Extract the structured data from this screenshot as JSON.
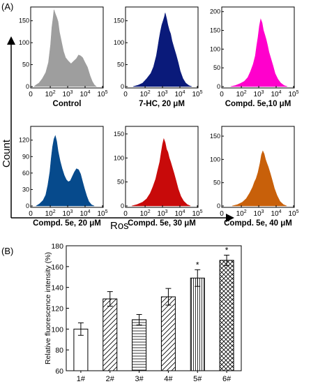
{
  "panel_a": {
    "label": "(A)",
    "y_axis_label": "Count",
    "x_axis_label": "Ros"
  },
  "panel_b": {
    "label": "(B)"
  },
  "chart_data": [
    {
      "type": "area",
      "title": "Control",
      "color": "#9e9e9e",
      "xscale": "log",
      "xlim": [
        0,
        100000
      ],
      "x_ticks": [
        "0",
        "10^2",
        "10^3",
        "10^4",
        "10^5"
      ],
      "y_ticks": [
        0,
        50,
        100,
        150
      ],
      "ylim": [
        0,
        175
      ],
      "profile": [
        [
          0.02,
          0
        ],
        [
          0.05,
          4
        ],
        [
          0.09,
          8
        ],
        [
          0.14,
          18
        ],
        [
          0.19,
          32
        ],
        [
          0.23,
          55
        ],
        [
          0.26,
          95
        ],
        [
          0.28,
          135
        ],
        [
          0.3,
          160
        ],
        [
          0.31,
          175
        ],
        [
          0.33,
          166
        ],
        [
          0.35,
          158
        ],
        [
          0.37,
          148
        ],
        [
          0.39,
          125
        ],
        [
          0.42,
          102
        ],
        [
          0.45,
          80
        ],
        [
          0.48,
          66
        ],
        [
          0.52,
          58
        ],
        [
          0.56,
          52
        ],
        [
          0.6,
          58
        ],
        [
          0.64,
          64
        ],
        [
          0.67,
          72
        ],
        [
          0.7,
          70
        ],
        [
          0.73,
          66
        ],
        [
          0.76,
          56
        ],
        [
          0.8,
          44
        ],
        [
          0.84,
          24
        ],
        [
          0.87,
          12
        ],
        [
          0.9,
          4
        ],
        [
          0.93,
          0
        ]
      ]
    },
    {
      "type": "area",
      "title": "7-HC, 20 μM",
      "color": "#0a1a7a",
      "xscale": "log",
      "xlim": [
        0,
        100000
      ],
      "x_ticks": [
        "0",
        "10^2",
        "10^3",
        "10^4",
        "10^5"
      ],
      "y_ticks": [
        0,
        50,
        100,
        150
      ],
      "ylim": [
        0,
        175
      ],
      "profile": [
        [
          0.08,
          0
        ],
        [
          0.15,
          3
        ],
        [
          0.22,
          8
        ],
        [
          0.28,
          18
        ],
        [
          0.34,
          30
        ],
        [
          0.38,
          45
        ],
        [
          0.42,
          70
        ],
        [
          0.44,
          88
        ],
        [
          0.46,
          108
        ],
        [
          0.48,
          125
        ],
        [
          0.5,
          140
        ],
        [
          0.52,
          150
        ],
        [
          0.54,
          160
        ],
        [
          0.55,
          168
        ],
        [
          0.57,
          155
        ],
        [
          0.59,
          140
        ],
        [
          0.61,
          128
        ],
        [
          0.63,
          120
        ],
        [
          0.65,
          104
        ],
        [
          0.68,
          88
        ],
        [
          0.71,
          72
        ],
        [
          0.74,
          55
        ],
        [
          0.77,
          35
        ],
        [
          0.81,
          18
        ],
        [
          0.85,
          8
        ],
        [
          0.9,
          2
        ],
        [
          0.94,
          0
        ]
      ]
    },
    {
      "type": "area",
      "title": "Compd. 5e,10 μM",
      "color": "#ff00cc",
      "xscale": "log",
      "xlim": [
        0,
        100000
      ],
      "x_ticks": [
        "0",
        "10^2",
        "10^3",
        "10^4",
        "10^5"
      ],
      "y_ticks": [
        0,
        50,
        100,
        150,
        200
      ],
      "ylim": [
        0,
        205
      ],
      "profile": [
        [
          0.1,
          0
        ],
        [
          0.17,
          3
        ],
        [
          0.24,
          8
        ],
        [
          0.3,
          14
        ],
        [
          0.35,
          24
        ],
        [
          0.39,
          40
        ],
        [
          0.43,
          60
        ],
        [
          0.46,
          82
        ],
        [
          0.48,
          108
        ],
        [
          0.5,
          132
        ],
        [
          0.52,
          162
        ],
        [
          0.54,
          180
        ],
        [
          0.56,
          170
        ],
        [
          0.58,
          150
        ],
        [
          0.6,
          138
        ],
        [
          0.62,
          125
        ],
        [
          0.64,
          110
        ],
        [
          0.66,
          92
        ],
        [
          0.69,
          74
        ],
        [
          0.72,
          55
        ],
        [
          0.75,
          35
        ],
        [
          0.79,
          20
        ],
        [
          0.83,
          10
        ],
        [
          0.88,
          3
        ],
        [
          0.93,
          0
        ]
      ]
    },
    {
      "type": "area",
      "title": "Compd. 5e, 20 μM",
      "color": "#064a8c",
      "xscale": "log",
      "xlim": [
        0,
        100000
      ],
      "x_ticks": [
        "0",
        "10^2",
        "10^3",
        "10^4",
        "10^5"
      ],
      "y_ticks": [
        0,
        30,
        60,
        90,
        120
      ],
      "ylim": [
        0,
        140
      ],
      "profile": [
        [
          0.05,
          0
        ],
        [
          0.1,
          4
        ],
        [
          0.15,
          10
        ],
        [
          0.19,
          20
        ],
        [
          0.22,
          38
        ],
        [
          0.25,
          62
        ],
        [
          0.27,
          88
        ],
        [
          0.29,
          108
        ],
        [
          0.31,
          122
        ],
        [
          0.33,
          128
        ],
        [
          0.35,
          118
        ],
        [
          0.37,
          100
        ],
        [
          0.4,
          82
        ],
        [
          0.43,
          68
        ],
        [
          0.46,
          56
        ],
        [
          0.49,
          48
        ],
        [
          0.52,
          44
        ],
        [
          0.55,
          46
        ],
        [
          0.58,
          54
        ],
        [
          0.61,
          62
        ],
        [
          0.64,
          68
        ],
        [
          0.67,
          66
        ],
        [
          0.7,
          58
        ],
        [
          0.73,
          44
        ],
        [
          0.76,
          30
        ],
        [
          0.79,
          18
        ],
        [
          0.82,
          8
        ],
        [
          0.86,
          2
        ],
        [
          0.9,
          0
        ]
      ]
    },
    {
      "type": "area",
      "title": "Compd. 5e, 30 μM",
      "color": "#c80a0a",
      "xscale": "log",
      "xlim": [
        0,
        100000
      ],
      "x_ticks": [
        "0",
        "10^2",
        "10^3",
        "10^4",
        "10^5"
      ],
      "y_ticks": [
        0,
        50,
        100,
        150
      ],
      "ylim": [
        0,
        160
      ],
      "profile": [
        [
          0.06,
          0
        ],
        [
          0.14,
          3
        ],
        [
          0.22,
          8
        ],
        [
          0.28,
          15
        ],
        [
          0.33,
          26
        ],
        [
          0.37,
          40
        ],
        [
          0.41,
          56
        ],
        [
          0.44,
          74
        ],
        [
          0.47,
          92
        ],
        [
          0.49,
          110
        ],
        [
          0.51,
          128
        ],
        [
          0.53,
          140
        ],
        [
          0.55,
          132
        ],
        [
          0.57,
          118
        ],
        [
          0.59,
          112
        ],
        [
          0.61,
          100
        ],
        [
          0.63,
          92
        ],
        [
          0.65,
          82
        ],
        [
          0.68,
          68
        ],
        [
          0.71,
          52
        ],
        [
          0.74,
          36
        ],
        [
          0.78,
          20
        ],
        [
          0.82,
          10
        ],
        [
          0.87,
          3
        ],
        [
          0.92,
          0
        ]
      ]
    },
    {
      "type": "area",
      "title": "Compd. 5e, 40 μM",
      "color": "#c8600a",
      "xscale": "log",
      "xlim": [
        0,
        100000
      ],
      "x_ticks": [
        "0",
        "10^2",
        "10^3",
        "10^4",
        "10^5"
      ],
      "y_ticks": [
        0,
        50,
        100,
        150
      ],
      "ylim": [
        0,
        165
      ],
      "profile": [
        [
          0.12,
          0
        ],
        [
          0.2,
          3
        ],
        [
          0.27,
          8
        ],
        [
          0.33,
          16
        ],
        [
          0.38,
          28
        ],
        [
          0.42,
          40
        ],
        [
          0.45,
          52
        ],
        [
          0.47,
          58
        ],
        [
          0.5,
          72
        ],
        [
          0.53,
          92
        ],
        [
          0.55,
          110
        ],
        [
          0.57,
          118
        ],
        [
          0.59,
          112
        ],
        [
          0.61,
          100
        ],
        [
          0.63,
          92
        ],
        [
          0.65,
          84
        ],
        [
          0.68,
          70
        ],
        [
          0.71,
          54
        ],
        [
          0.74,
          38
        ],
        [
          0.78,
          22
        ],
        [
          0.82,
          10
        ],
        [
          0.87,
          3
        ],
        [
          0.92,
          0
        ]
      ]
    },
    {
      "type": "bar",
      "categories": [
        "1#",
        "2#",
        "3#",
        "4#",
        "5#",
        "6#"
      ],
      "values": [
        100,
        129,
        109,
        131,
        149,
        166
      ],
      "errors": [
        6,
        7,
        5,
        8,
        8,
        5
      ],
      "significance": [
        "",
        "",
        "",
        "",
        "*",
        "*"
      ],
      "patterns": [
        "none",
        "diagonal",
        "horizontal",
        "diagonal",
        "vertical",
        "crosshatch"
      ],
      "ylabel": "Relative fluorescence intensity (%)",
      "xlabel": "",
      "ylim": [
        60,
        180
      ],
      "y_ticks": [
        60,
        80,
        100,
        120,
        140,
        160,
        180
      ]
    }
  ]
}
